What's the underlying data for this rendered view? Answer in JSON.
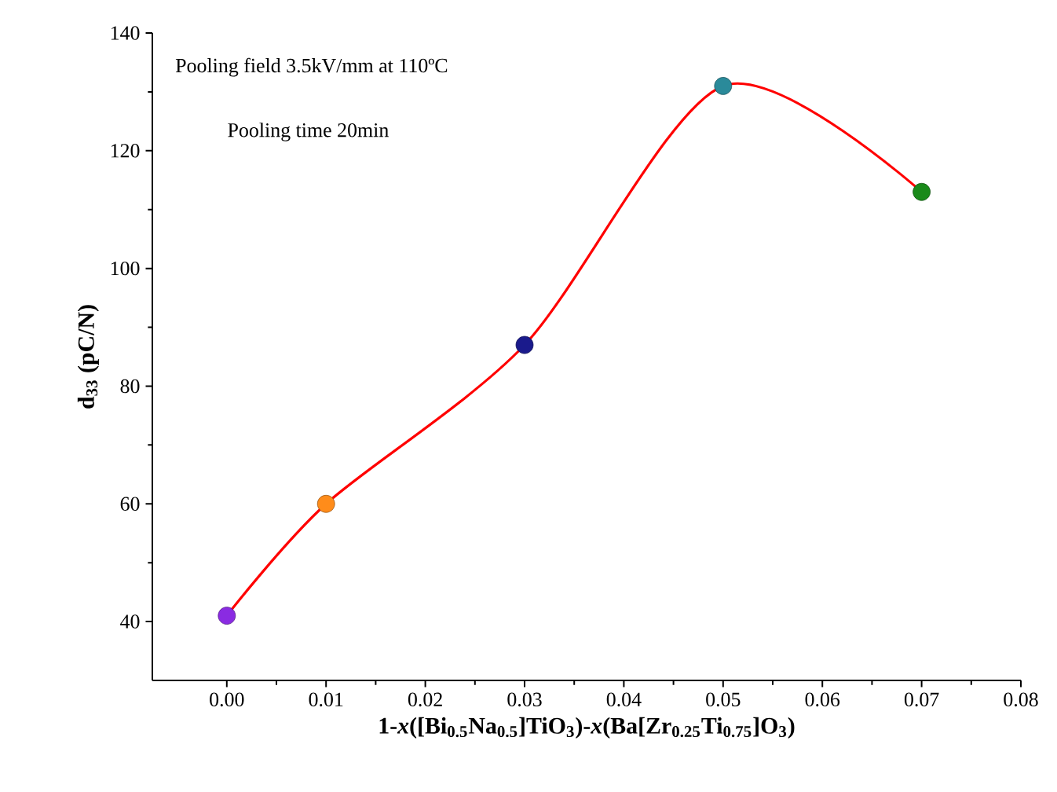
{
  "chart_data": {
    "type": "line",
    "xlabel": "1-*x*([Bi$_{0.5}$Na$_{0.5}$]TiO$_{3}$)-*x*(Ba[Zr$_{0.25}$Ti$_{0.75}$]O$_{3}$)",
    "ylabel": "d$_{33}$ (pC/N)",
    "annotations": [
      "Pooling field 3.5kV/mm at 110ºC",
      "Pooling time 20min"
    ],
    "x": [
      0.0,
      0.01,
      0.03,
      0.05,
      0.07
    ],
    "series": [
      {
        "color": "#ff0000",
        "colors": [
          "#8a2be2",
          "#ff8c1a",
          "#1a1a8c",
          "#2a8a9a",
          "#1a8a1a"
        ],
        "values": [
          41,
          60,
          87,
          131,
          113
        ]
      }
    ],
    "marker": "circle",
    "line_style": "solid",
    "xlim": [
      -0.0075,
      0.08
    ],
    "ylim": [
      30,
      140
    ],
    "xticks": [
      {
        "value": 0.0,
        "label": "0.00"
      },
      {
        "value": 0.01,
        "label": "0.01"
      },
      {
        "value": 0.02,
        "label": "0.02"
      },
      {
        "value": 0.03,
        "label": "0.03"
      },
      {
        "value": 0.04,
        "label": "0.04"
      },
      {
        "value": 0.05,
        "label": "0.05"
      },
      {
        "value": 0.06,
        "label": "0.06"
      },
      {
        "value": 0.07,
        "label": "0.07"
      },
      {
        "value": 0.08,
        "label": "0.08"
      }
    ],
    "yticks": [
      40,
      60,
      80,
      100,
      120,
      140
    ]
  }
}
